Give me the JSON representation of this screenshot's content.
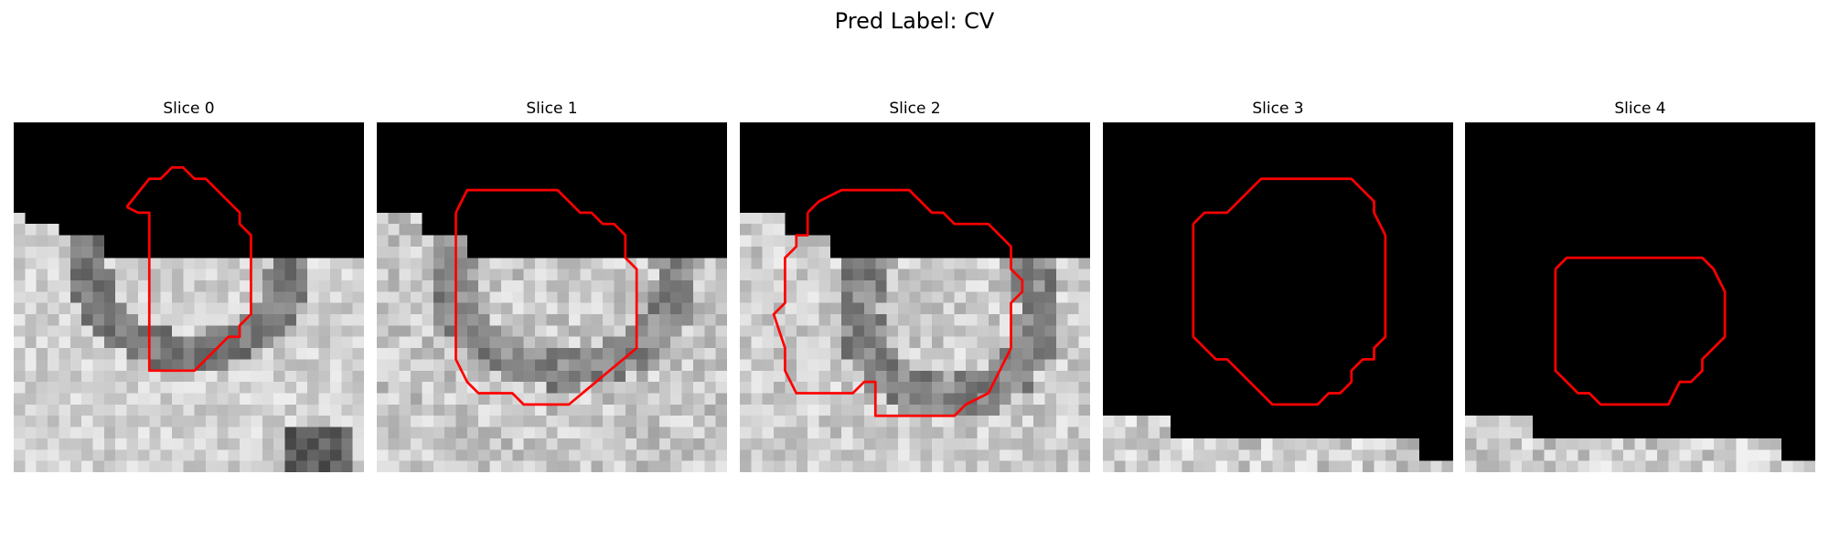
{
  "figure": {
    "title": "Pred Label: CV"
  },
  "panels": [
    {
      "title": "Slice 0"
    },
    {
      "title": "Slice 1"
    },
    {
      "title": "Slice 2"
    },
    {
      "title": "Slice 3"
    },
    {
      "title": "Slice 4"
    }
  ],
  "colors": {
    "contour": "#ff0000",
    "background": "#000000"
  }
}
